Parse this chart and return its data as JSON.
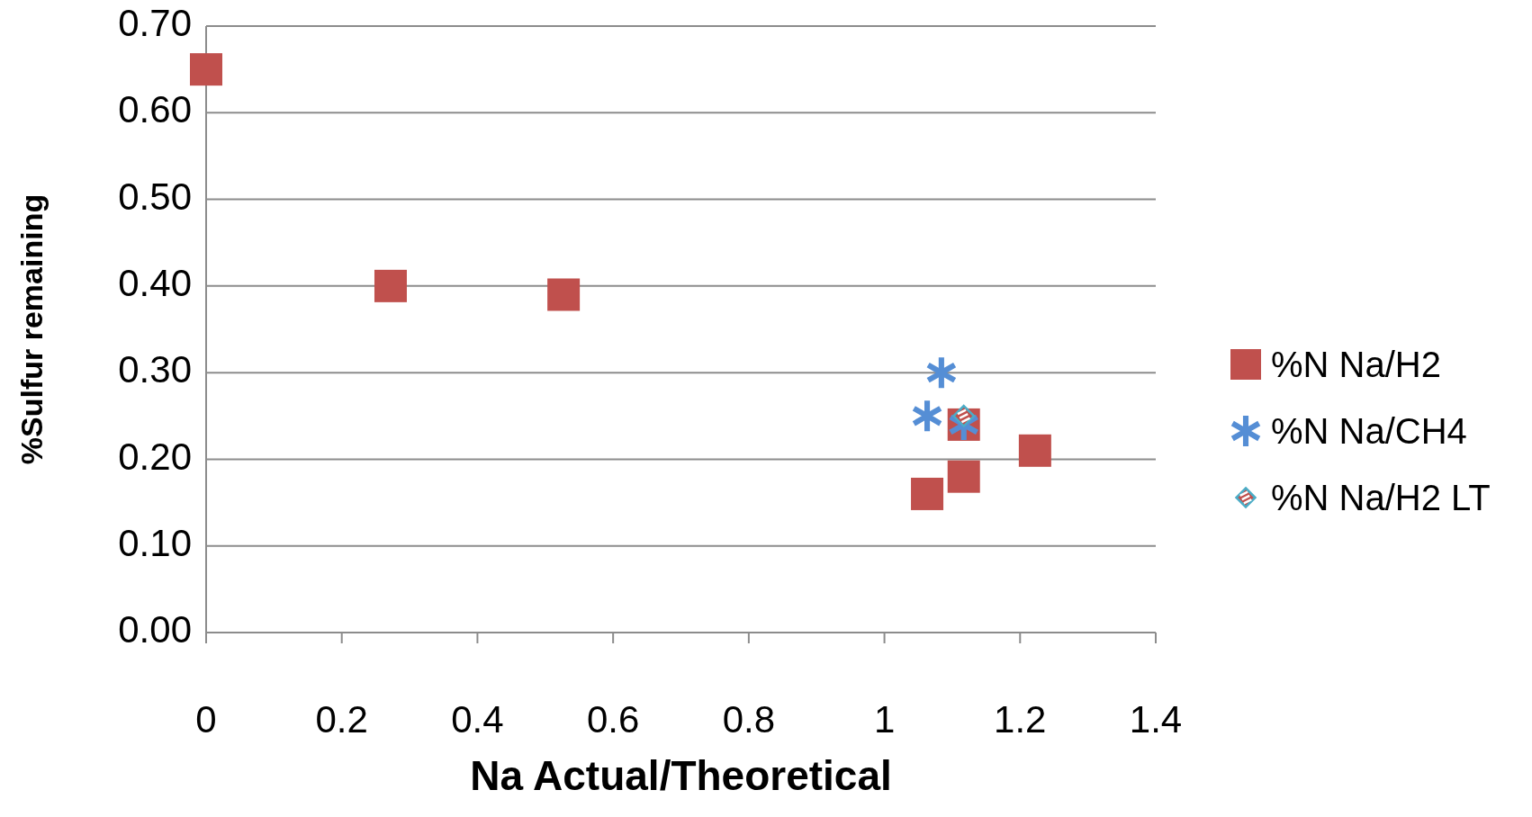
{
  "chart_data": {
    "type": "scatter",
    "xlabel": "Na Actual/Theoretical",
    "ylabel": "%Sulfur remaining",
    "xlim": [
      0,
      1.4
    ],
    "xticks": [
      0,
      0.2,
      0.4,
      0.6,
      0.8,
      1,
      1.2,
      1.4
    ],
    "ylim": [
      0,
      0.7
    ],
    "yticks": [
      {
        "value": 0,
        "label": "0.00"
      },
      {
        "value": 0.1,
        "label": "0.10"
      },
      {
        "value": 0.2,
        "label": "0.20"
      },
      {
        "value": 0.3,
        "label": "0.30"
      },
      {
        "value": 0.4,
        "label": "0.40"
      },
      {
        "value": 0.5,
        "label": "0.50"
      },
      {
        "value": 0.6,
        "label": "0.60"
      },
      {
        "value": 0.7,
        "label": "0.70"
      }
    ],
    "grid": "y",
    "legend": "right",
    "series": [
      {
        "name": "%N Na/H2",
        "color": "#c0504d",
        "marker": "square",
        "x": [
          0,
          0.272,
          0.527,
          1.063,
          1.117,
          1.117,
          1.222
        ],
        "values": [
          0.65,
          0.4,
          0.39,
          0.16,
          0.18,
          0.24,
          0.21
        ]
      },
      {
        "name": "%N Na/CH4",
        "color": "#558ed5",
        "marker": "cross",
        "x": [
          1.084,
          1.063,
          1.117
        ],
        "values": [
          0.3,
          0.25,
          0.24
        ]
      },
      {
        "name": "%N Na/H2 LT",
        "color": "#c0504d",
        "marker": "diamond",
        "x": [
          1.117
        ],
        "values": [
          0.25
        ]
      }
    ]
  }
}
